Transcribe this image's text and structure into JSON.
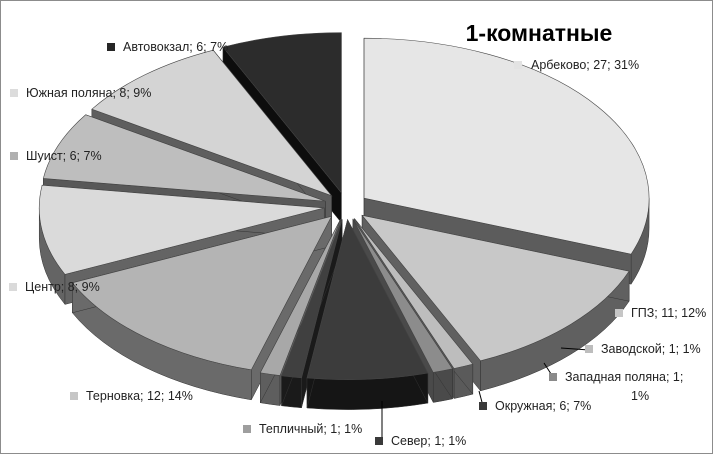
{
  "chart_data": {
    "type": "pie",
    "variant": "3d-exploded",
    "title": "1-комнатные",
    "slices": [
      {
        "label": "Арбеково",
        "value": 27,
        "percent": "31%",
        "text": "Арбеково; 27; 31%",
        "top": "#e6e6e6",
        "side": "#5c5c5c",
        "marker": "#e3e3e3"
      },
      {
        "label": "ГПЗ",
        "value": 11,
        "percent": "12%",
        "text": "ГПЗ; 11; 12%",
        "top": "#c8c8c8",
        "side": "#606060",
        "marker": "#c6c6c6"
      },
      {
        "label": "Заводской",
        "value": 1,
        "percent": "1%",
        "text": "Заводской; 1; 1%",
        "top": "#bdbdbd",
        "side": "#5a5a5a",
        "marker": "#bdbdbd"
      },
      {
        "label": "Западная поляна",
        "value": 1,
        "percent": "1%",
        "text": [
          "Западная поляна; 1;",
          "1%"
        ],
        "top": "#8c8c8c",
        "side": "#4a4a4a",
        "marker": "#8a8a8a"
      },
      {
        "label": "Окружная",
        "value": 6,
        "percent": "7%",
        "text": "Окружная; 6; 7%",
        "top": "#3c3c3c",
        "side": "#151515",
        "marker": "#3a3a3a"
      },
      {
        "label": "Север",
        "value": 1,
        "percent": "1%",
        "text": "Север; 1; 1%",
        "top": "#404040",
        "side": "#1a1a1a",
        "marker": "#3a3a3a"
      },
      {
        "label": "Тепличный",
        "value": 1,
        "percent": "1%",
        "text": "Тепличный; 1; 1%",
        "top": "#a8a8a8",
        "side": "#5e5e5e",
        "marker": "#9e9e9e"
      },
      {
        "label": "Терновка",
        "value": 12,
        "percent": "14%",
        "text": "Терновка; 12; 14%",
        "top": "#b4b4b4",
        "side": "#6a6a6a",
        "marker": "#c6c6c6"
      },
      {
        "label": "Центр",
        "value": 8,
        "percent": "9%",
        "text": "Центр; 8; 9%",
        "top": "#dadada",
        "side": "#646464",
        "marker": "#dadada"
      },
      {
        "label": "Шуист",
        "value": 6,
        "percent": "7%",
        "text": "Шуист; 6; 7%",
        "top": "#bebebe",
        "side": "#585858",
        "marker": "#b0b0b0"
      },
      {
        "label": "Южная поляна",
        "value": 8,
        "percent": "9%",
        "text": "Южная поляна; 8; 9%",
        "top": "#d4d4d4",
        "side": "#5e5e5e",
        "marker": "#dcdcdc"
      },
      {
        "label": "Автовокзал",
        "value": 6,
        "percent": "7%",
        "text": "Автовокзал; 6; 7%",
        "top": "#2c2c2c",
        "side": "#0d0d0d",
        "marker": "#262626"
      }
    ],
    "legend": "none",
    "data_labels": "category; value; percent"
  }
}
